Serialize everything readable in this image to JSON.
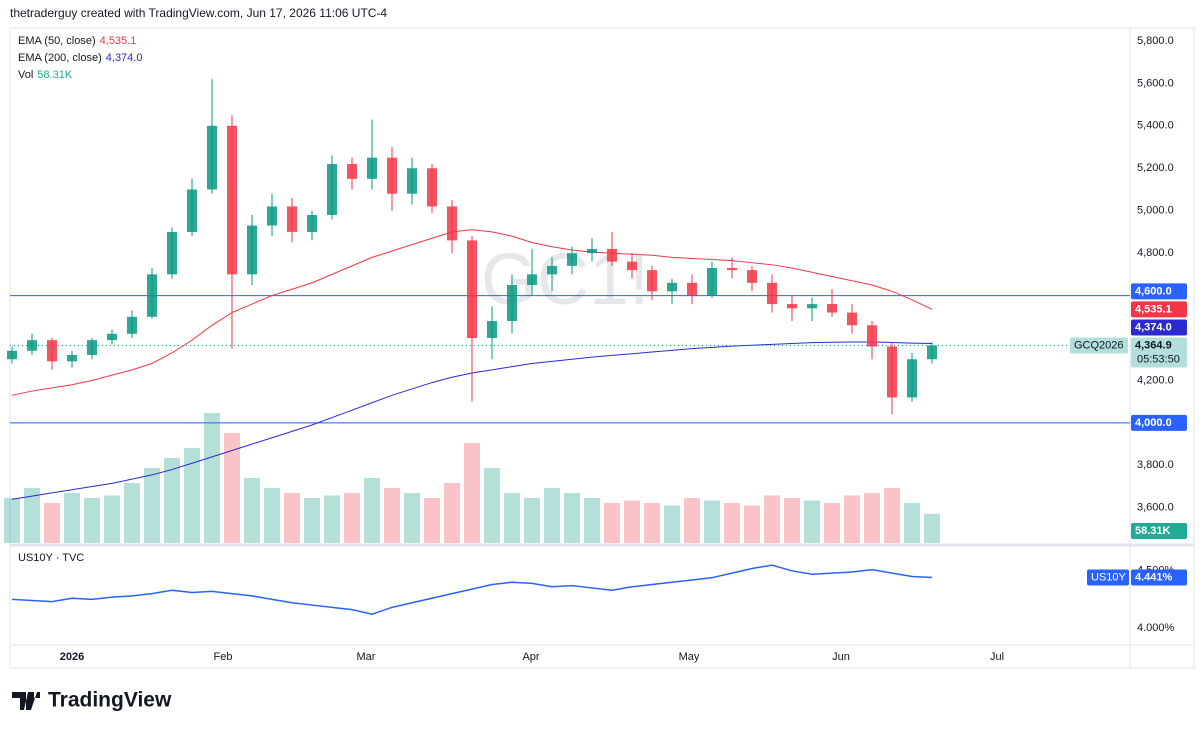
{
  "header": "thetraderguy created with TradingView.com, Jun 17, 2026 11:06 UTC-4",
  "brand": "TradingView",
  "chart_data": [
    {
      "type": "candlestick",
      "title": "GC1!",
      "ticker": "GCQ2026",
      "countdown": "05:53:50",
      "last_label": "4,364.9",
      "up_color": "#089981",
      "down_color": "#f23645",
      "x": [
        0,
        1,
        2,
        3,
        4,
        5,
        6,
        7,
        8,
        9,
        10,
        11,
        12,
        13,
        14,
        15,
        16,
        17,
        18,
        19,
        20,
        21,
        22,
        23,
        24,
        25,
        26,
        27,
        28,
        29,
        30,
        31,
        32,
        33,
        34,
        35,
        36,
        37,
        38,
        39,
        40,
        41,
        42,
        43,
        44,
        45,
        46
      ],
      "open": [
        4300,
        4340,
        4390,
        4290,
        4320,
        4390,
        4420,
        4500,
        4700,
        4900,
        5100,
        5400,
        4700,
        4930,
        5020,
        4900,
        4980,
        5220,
        5150,
        5250,
        5080,
        5200,
        5020,
        4860,
        4400,
        4480,
        4650,
        4700,
        4740,
        4800,
        4820,
        4760,
        4720,
        4620,
        4660,
        4600,
        4730,
        4720,
        4660,
        4560,
        4540,
        4560,
        4520,
        4460,
        4360,
        4120,
        4300
      ],
      "high": [
        4360,
        4420,
        4400,
        4340,
        4400,
        4440,
        4530,
        4730,
        4920,
        5150,
        5620,
        5450,
        4980,
        5080,
        5060,
        5000,
        5260,
        5250,
        5430,
        5300,
        5250,
        5220,
        5050,
        4880,
        4550,
        4700,
        4820,
        4780,
        4830,
        4870,
        4900,
        4800,
        4740,
        4680,
        4700,
        4760,
        4780,
        4740,
        4700,
        4600,
        4590,
        4630,
        4560,
        4480,
        4380,
        4330,
        4380
      ],
      "low": [
        4280,
        4320,
        4250,
        4260,
        4300,
        4370,
        4400,
        4490,
        4680,
        4880,
        5080,
        4350,
        4650,
        4880,
        4850,
        4860,
        4960,
        5100,
        5100,
        5000,
        5030,
        4990,
        4800,
        4100,
        4300,
        4420,
        4600,
        4620,
        4700,
        4760,
        4740,
        4680,
        4580,
        4560,
        4560,
        4590,
        4680,
        4620,
        4520,
        4480,
        4480,
        4500,
        4420,
        4300,
        4040,
        4100,
        4280
      ],
      "close": [
        4340,
        4390,
        4290,
        4320,
        4390,
        4420,
        4500,
        4700,
        4900,
        5100,
        5400,
        4700,
        4930,
        5020,
        4900,
        4980,
        5220,
        5150,
        5250,
        5080,
        5200,
        5020,
        4860,
        4400,
        4480,
        4650,
        4700,
        4740,
        4800,
        4820,
        4760,
        4720,
        4620,
        4660,
        4600,
        4730,
        4720,
        4660,
        4560,
        4540,
        4560,
        4520,
        4460,
        4360,
        4120,
        4300,
        4364.9
      ],
      "series": [
        {
          "name": "EMA (50, close)",
          "color": "#f23645",
          "last_label": "4,535.1",
          "values": [
            4130,
            4150,
            4165,
            4180,
            4200,
            4225,
            4250,
            4280,
            4330,
            4390,
            4460,
            4520,
            4560,
            4600,
            4630,
            4660,
            4700,
            4740,
            4780,
            4810,
            4840,
            4870,
            4900,
            4910,
            4900,
            4880,
            4850,
            4830,
            4815,
            4805,
            4800,
            4795,
            4790,
            4780,
            4775,
            4770,
            4765,
            4755,
            4745,
            4730,
            4710,
            4690,
            4670,
            4650,
            4620,
            4580,
            4535.1
          ]
        },
        {
          "name": "EMA (200, close)",
          "color": "#2a2ad0",
          "last_label": "4,374.0",
          "values": [
            3640,
            3655,
            3670,
            3685,
            3700,
            3715,
            3735,
            3755,
            3780,
            3810,
            3840,
            3870,
            3900,
            3930,
            3960,
            3990,
            4025,
            4060,
            4095,
            4130,
            4160,
            4190,
            4215,
            4235,
            4250,
            4265,
            4280,
            4290,
            4300,
            4310,
            4318,
            4326,
            4334,
            4342,
            4350,
            4356,
            4362,
            4366,
            4370,
            4374,
            4378,
            4380,
            4381,
            4381,
            4379,
            4376,
            4374.0
          ]
        }
      ],
      "volume": {
        "name": "Vol",
        "last_label": "58.31K",
        "color": "#22ab94",
        "vlim": [
          0,
          260
        ],
        "values": [
          90,
          110,
          80,
          100,
          90,
          95,
          120,
          150,
          170,
          190,
          260,
          220,
          130,
          110,
          100,
          90,
          95,
          100,
          130,
          110,
          100,
          90,
          120,
          200,
          150,
          100,
          90,
          110,
          100,
          90,
          80,
          85,
          80,
          75,
          90,
          85,
          80,
          75,
          95,
          90,
          85,
          80,
          95,
          100,
          110,
          80,
          58.31
        ]
      },
      "hlines": [
        {
          "value": 4600,
          "label": "4,600.0"
        },
        {
          "value": 4000,
          "label": "4,000.0"
        }
      ],
      "hline_color": "#2962ff",
      "xlim": [
        -0.1,
        55.9
      ],
      "xticks": [
        {
          "value": 3,
          "label": "2026"
        },
        {
          "value": 10.55,
          "label": "Feb"
        },
        {
          "value": 17.7,
          "label": "Mar"
        },
        {
          "value": 25.95,
          "label": "Apr"
        },
        {
          "value": 33.85,
          "label": "May"
        },
        {
          "value": 41.45,
          "label": "Jun"
        },
        {
          "value": 49.25,
          "label": "Jul"
        }
      ],
      "ylim": [
        3434,
        5861
      ],
      "yticks": [
        {
          "value": 3600,
          "label": "3,600.0"
        },
        {
          "value": 3800,
          "label": "3,800.0"
        },
        {
          "value": 4200,
          "label": "4,200.0"
        },
        {
          "value": 4800,
          "label": "4,800.0"
        },
        {
          "value": 5000,
          "label": "5,000.0"
        },
        {
          "value": 5200,
          "label": "5,200.0"
        },
        {
          "value": 5400,
          "label": "5,400.0"
        },
        {
          "value": 5600,
          "label": "5,600.0"
        },
        {
          "value": 5800,
          "label": "5,800.0"
        }
      ]
    },
    {
      "type": "line",
      "title": "US10Y · TVC",
      "name": "US10Y",
      "color": "#2962ff",
      "last_label": "4.441%",
      "values": [
        4.25,
        4.24,
        4.23,
        4.26,
        4.25,
        4.27,
        4.28,
        4.3,
        4.33,
        4.31,
        4.32,
        4.3,
        4.28,
        4.25,
        4.22,
        4.2,
        4.18,
        4.16,
        4.12,
        4.18,
        4.22,
        4.26,
        4.3,
        4.34,
        4.38,
        4.4,
        4.39,
        4.36,
        4.37,
        4.35,
        4.33,
        4.36,
        4.38,
        4.4,
        4.42,
        4.44,
        4.48,
        4.52,
        4.55,
        4.5,
        4.47,
        4.48,
        4.49,
        4.51,
        4.48,
        4.45,
        4.441
      ],
      "ylim": [
        3.85,
        4.7
      ],
      "yticks": [
        {
          "value": 4.5,
          "label": "4.500%"
        },
        {
          "value": 4.0,
          "label": "4.000%"
        }
      ]
    }
  ]
}
